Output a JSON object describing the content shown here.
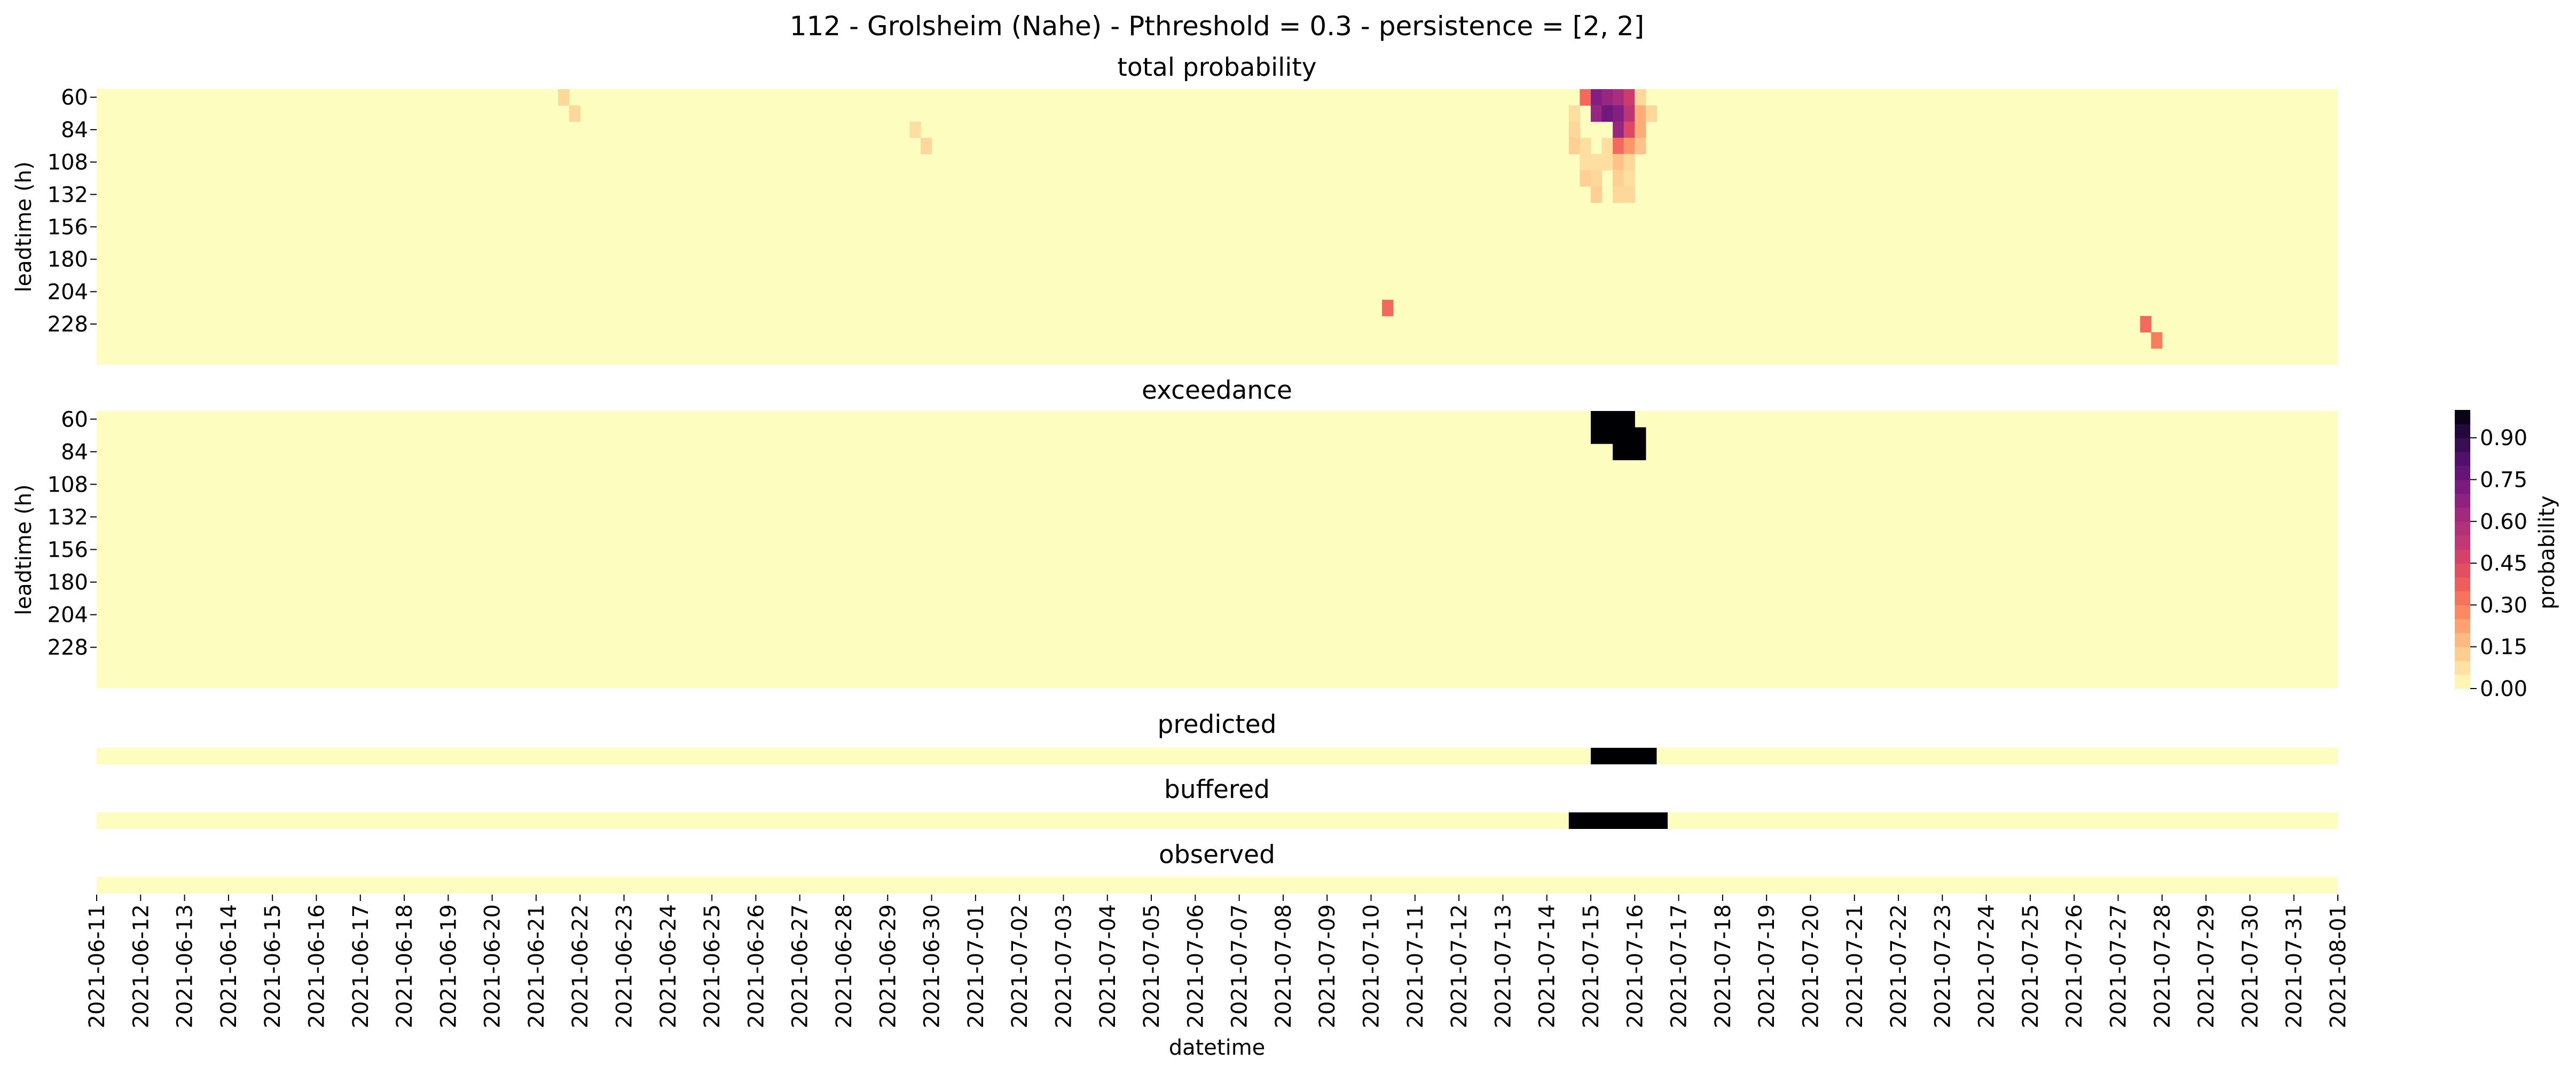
{
  "chart_data": {
    "type": "heatmap",
    "title": "112 - Grolsheim (Nahe) - Pthreshold = 0.3 - persistence = [2, 2]",
    "xlabel": "datetime",
    "x_start": "2021-06-11",
    "x_end": "2021-08-01",
    "x_step_hours": 6,
    "x_ticks": [
      "2021-06-11",
      "2021-06-12",
      "2021-06-13",
      "2021-06-14",
      "2021-06-15",
      "2021-06-16",
      "2021-06-17",
      "2021-06-18",
      "2021-06-19",
      "2021-06-20",
      "2021-06-21",
      "2021-06-22",
      "2021-06-23",
      "2021-06-24",
      "2021-06-25",
      "2021-06-26",
      "2021-06-27",
      "2021-06-28",
      "2021-06-29",
      "2021-06-30",
      "2021-07-01",
      "2021-07-02",
      "2021-07-03",
      "2021-07-04",
      "2021-07-05",
      "2021-07-06",
      "2021-07-07",
      "2021-07-08",
      "2021-07-09",
      "2021-07-10",
      "2021-07-11",
      "2021-07-12",
      "2021-07-13",
      "2021-07-14",
      "2021-07-15",
      "2021-07-16",
      "2021-07-17",
      "2021-07-18",
      "2021-07-19",
      "2021-07-20",
      "2021-07-21",
      "2021-07-22",
      "2021-07-23",
      "2021-07-24",
      "2021-07-25",
      "2021-07-26",
      "2021-07-27",
      "2021-07-28",
      "2021-07-29",
      "2021-07-30",
      "2021-07-31",
      "2021-08-01"
    ],
    "leadtime_ticks": [
      "60",
      "84",
      "108",
      "132",
      "156",
      "180",
      "204",
      "228"
    ],
    "leadtime_min_h": 60,
    "leadtime_max_h": 246,
    "leadtime_step_h": 12,
    "panels": [
      {
        "name": "total probability",
        "ylabel": "leadtime (h)",
        "cells": [
          {
            "t": "2021-06-21T12",
            "lt": 60,
            "v": 0.1
          },
          {
            "t": "2021-06-21T18",
            "lt": 72,
            "v": 0.1
          },
          {
            "t": "2021-06-29T12",
            "lt": 84,
            "v": 0.08
          },
          {
            "t": "2021-06-29T18",
            "lt": 96,
            "v": 0.1
          },
          {
            "t": "2021-07-10T06",
            "lt": 216,
            "v": 0.35
          },
          {
            "t": "2021-07-27T12",
            "lt": 228,
            "v": 0.35
          },
          {
            "t": "2021-07-27T18",
            "lt": 240,
            "v": 0.3
          },
          {
            "t": "2021-07-14T18",
            "lt": 60,
            "v": 0.35
          },
          {
            "t": "2021-07-15T00",
            "lt": 60,
            "v": 0.7
          },
          {
            "t": "2021-07-15T06",
            "lt": 60,
            "v": 0.65
          },
          {
            "t": "2021-07-15T12",
            "lt": 60,
            "v": 0.6
          },
          {
            "t": "2021-07-15T18",
            "lt": 60,
            "v": 0.5
          },
          {
            "t": "2021-07-16T00",
            "lt": 60,
            "v": 0.1
          },
          {
            "t": "2021-07-14T12",
            "lt": 72,
            "v": 0.08
          },
          {
            "t": "2021-07-15T00",
            "lt": 72,
            "v": 0.65
          },
          {
            "t": "2021-07-15T06",
            "lt": 72,
            "v": 0.75
          },
          {
            "t": "2021-07-15T12",
            "lt": 72,
            "v": 0.7
          },
          {
            "t": "2021-07-15T18",
            "lt": 72,
            "v": 0.55
          },
          {
            "t": "2021-07-16T00",
            "lt": 72,
            "v": 0.2
          },
          {
            "t": "2021-07-16T06",
            "lt": 72,
            "v": 0.1
          },
          {
            "t": "2021-07-14T12",
            "lt": 84,
            "v": 0.1
          },
          {
            "t": "2021-07-15T12",
            "lt": 84,
            "v": 0.65
          },
          {
            "t": "2021-07-15T18",
            "lt": 84,
            "v": 0.45
          },
          {
            "t": "2021-07-16T00",
            "lt": 84,
            "v": 0.2
          },
          {
            "t": "2021-07-14T12",
            "lt": 96,
            "v": 0.12
          },
          {
            "t": "2021-07-14T18",
            "lt": 96,
            "v": 0.08
          },
          {
            "t": "2021-07-15T06",
            "lt": 96,
            "v": 0.08
          },
          {
            "t": "2021-07-15T12",
            "lt": 96,
            "v": 0.35
          },
          {
            "t": "2021-07-15T18",
            "lt": 96,
            "v": 0.25
          },
          {
            "t": "2021-07-16T00",
            "lt": 96,
            "v": 0.15
          },
          {
            "t": "2021-07-14T18",
            "lt": 108,
            "v": 0.08
          },
          {
            "t": "2021-07-15T00",
            "lt": 108,
            "v": 0.08
          },
          {
            "t": "2021-07-15T06",
            "lt": 108,
            "v": 0.08
          },
          {
            "t": "2021-07-15T12",
            "lt": 108,
            "v": 0.15
          },
          {
            "t": "2021-07-15T18",
            "lt": 108,
            "v": 0.1
          },
          {
            "t": "2021-07-14T18",
            "lt": 120,
            "v": 0.12
          },
          {
            "t": "2021-07-15T00",
            "lt": 120,
            "v": 0.1
          },
          {
            "t": "2021-07-15T12",
            "lt": 120,
            "v": 0.12
          },
          {
            "t": "2021-07-15T18",
            "lt": 120,
            "v": 0.08
          },
          {
            "t": "2021-07-15T00",
            "lt": 132,
            "v": 0.12
          },
          {
            "t": "2021-07-15T12",
            "lt": 132,
            "v": 0.1
          },
          {
            "t": "2021-07-15T18",
            "lt": 132,
            "v": 0.1
          }
        ]
      },
      {
        "name": "exceedance",
        "ylabel": "leadtime (h)",
        "cells": [
          {
            "t": "2021-07-15T00",
            "lt": 60,
            "v": 1
          },
          {
            "t": "2021-07-15T06",
            "lt": 60,
            "v": 1
          },
          {
            "t": "2021-07-15T12",
            "lt": 60,
            "v": 1
          },
          {
            "t": "2021-07-15T18",
            "lt": 60,
            "v": 1
          },
          {
            "t": "2021-07-15T00",
            "lt": 72,
            "v": 1
          },
          {
            "t": "2021-07-15T06",
            "lt": 72,
            "v": 1
          },
          {
            "t": "2021-07-15T12",
            "lt": 72,
            "v": 1
          },
          {
            "t": "2021-07-15T18",
            "lt": 72,
            "v": 1
          },
          {
            "t": "2021-07-16T00",
            "lt": 72,
            "v": 1
          },
          {
            "t": "2021-07-15T12",
            "lt": 84,
            "v": 1
          },
          {
            "t": "2021-07-15T18",
            "lt": 84,
            "v": 1
          },
          {
            "t": "2021-07-16T00",
            "lt": 84,
            "v": 1
          }
        ]
      }
    ],
    "strips": [
      {
        "name": "predicted",
        "events": [
          {
            "start": "2021-07-15T00",
            "end": "2021-07-16T06"
          }
        ]
      },
      {
        "name": "buffered",
        "events": [
          {
            "start": "2021-07-14T12",
            "end": "2021-07-16T12"
          }
        ]
      },
      {
        "name": "observed",
        "events": []
      }
    ],
    "colorbar": {
      "label": "probability",
      "ticks": [
        "0.00",
        "0.15",
        "0.30",
        "0.45",
        "0.60",
        "0.75",
        "0.90"
      ],
      "range": [
        0,
        1
      ],
      "bands": 20,
      "colormap": "magma_r"
    },
    "colors": {
      "background_cell": "#fcfdbf",
      "event": "#000004"
    }
  }
}
